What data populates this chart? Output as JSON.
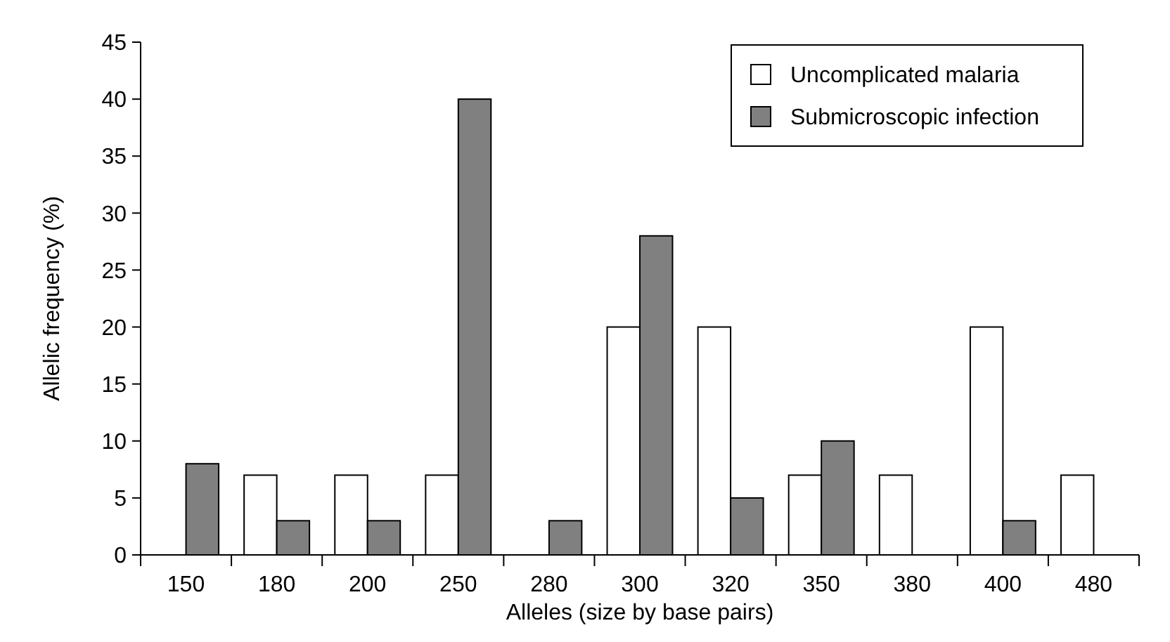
{
  "chart_data": {
    "type": "bar",
    "xlabel": "Alleles (size by base pairs)",
    "ylabel": "Allelic frequency (%)",
    "categories": [
      "150",
      "180",
      "200",
      "250",
      "280",
      "300",
      "320",
      "350",
      "380",
      "400",
      "480"
    ],
    "series": [
      {
        "name": "Uncomplicated malaria",
        "color": "#ffffff",
        "values": [
          0,
          7,
          7,
          7,
          0,
          20,
          20,
          7,
          7,
          20,
          7
        ]
      },
      {
        "name": "Submicroscopic infection",
        "color": "#808080",
        "values": [
          8,
          3,
          3,
          40,
          3,
          28,
          5,
          10,
          0,
          3,
          0
        ]
      }
    ],
    "ylim": [
      0,
      45
    ],
    "yticks": [
      0,
      5,
      10,
      15,
      20,
      25,
      30,
      35,
      40,
      45
    ],
    "grid": false,
    "legend": "top right"
  }
}
